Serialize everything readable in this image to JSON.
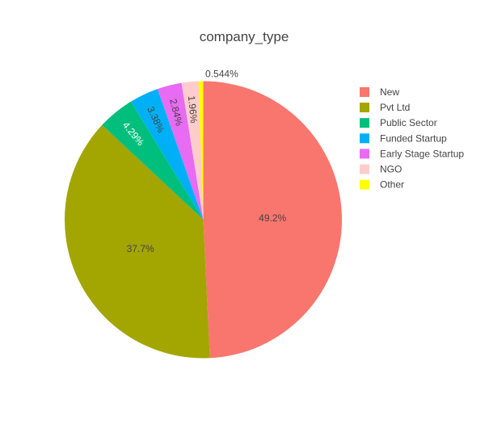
{
  "chart_data": {
    "type": "pie",
    "title": "company_type",
    "categories": [
      "New",
      "Pvt Ltd",
      "Public Sector",
      "Funded Startup",
      "Early Stage Startup",
      "NGO",
      "Other"
    ],
    "values": [
      49.2,
      37.7,
      4.29,
      3.38,
      2.84,
      1.96,
      0.544
    ],
    "labels": [
      "49.2%",
      "37.7%",
      "4.29%",
      "3.38%",
      "2.84%",
      "1.96%",
      "0.544%"
    ],
    "colors": [
      "#f8766d",
      "#a3a500",
      "#00bf7d",
      "#00b0f6",
      "#e76bf3",
      "#ffcccc",
      "#ffff00"
    ],
    "label_colors": [
      "#444444",
      "#444444",
      "#ffffff",
      "#444444",
      "#444444",
      "#444444",
      "#444444"
    ],
    "label_placement": [
      "inside",
      "inside",
      "inside-radial",
      "inside-radial",
      "inside-radial",
      "inside-radial",
      "outside"
    ],
    "direction": "clockwise",
    "start_angle": "top",
    "legend_position": "right"
  }
}
